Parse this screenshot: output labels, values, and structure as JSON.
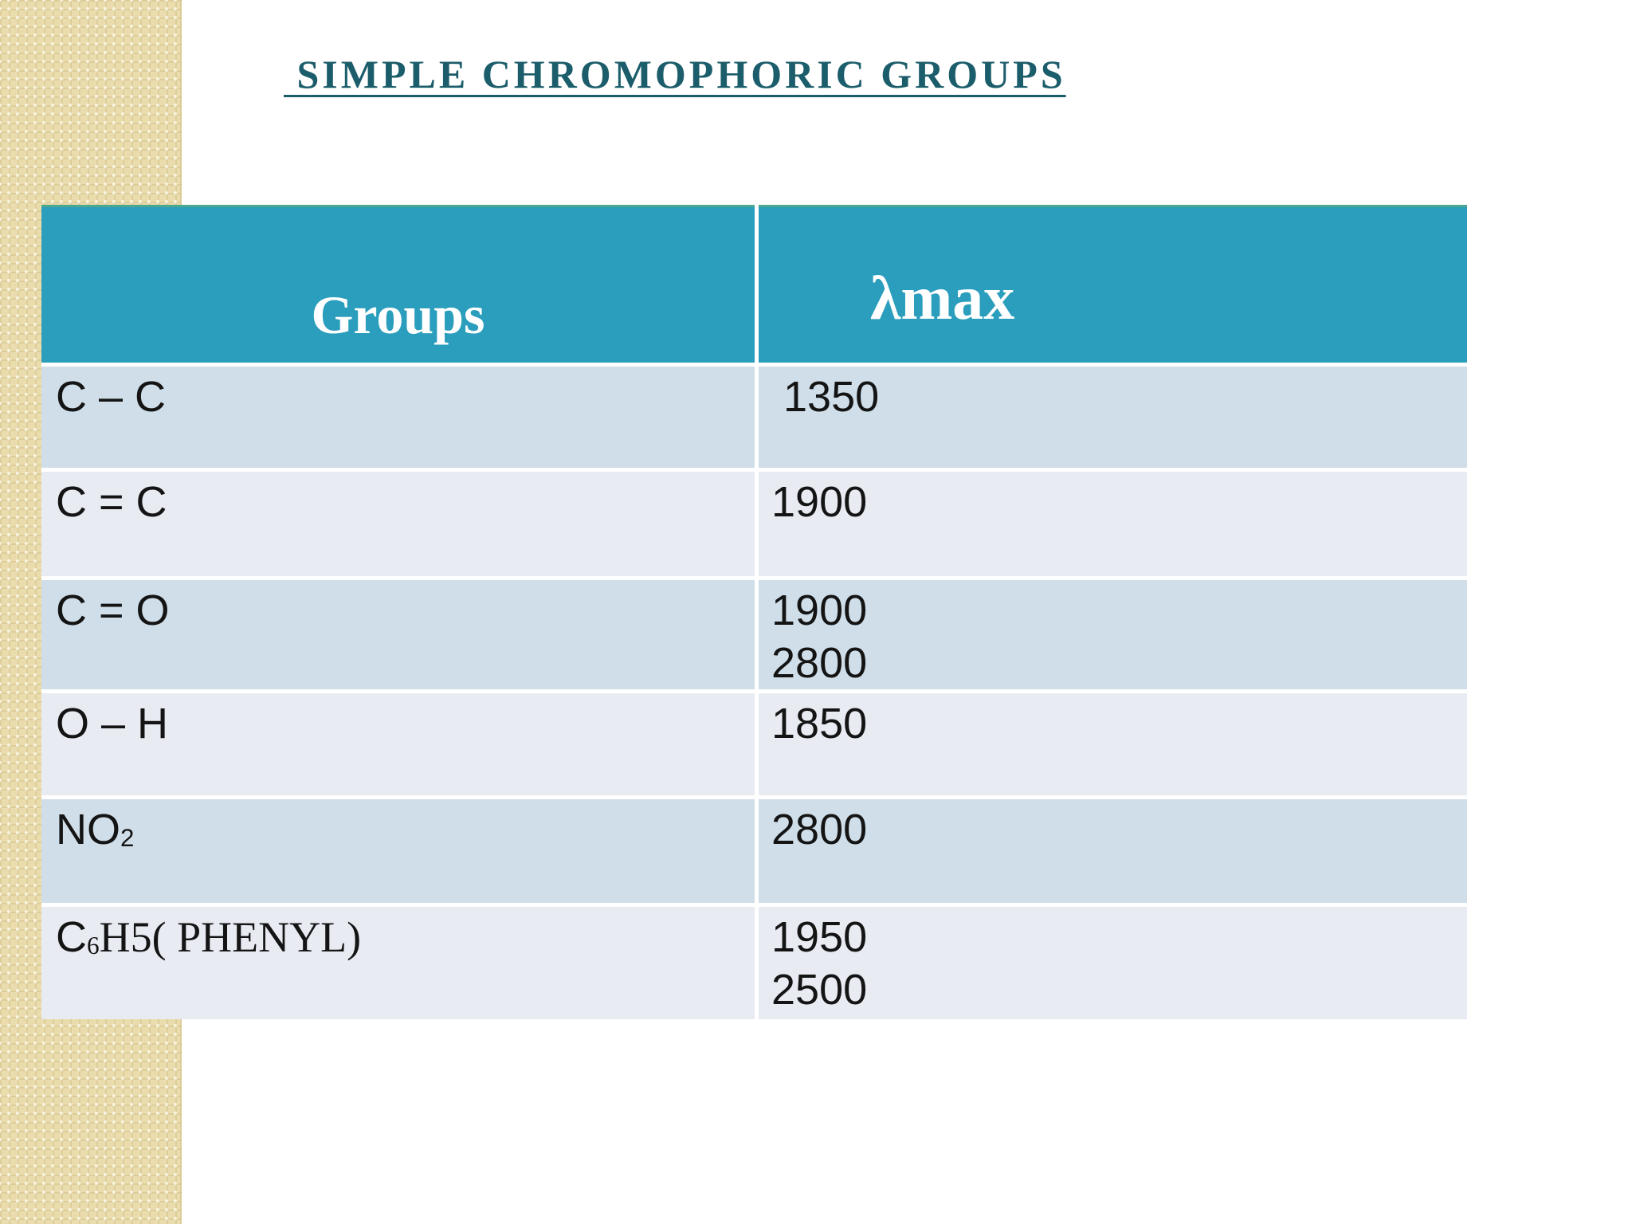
{
  "slide": {
    "title": " SIMPLE CHROMOPHORIC GROUPS"
  },
  "table": {
    "columns": [
      "Groups",
      "λmax"
    ],
    "rows": [
      {
        "group": {
          "pre": "C – C"
        },
        "lambda_max": " 1350"
      },
      {
        "group": {
          "pre": "C = C"
        },
        "lambda_max": "1900"
      },
      {
        "group": {
          "pre": "C = O"
        },
        "lambda_max": "1900\n2800"
      },
      {
        "group": {
          "pre": "O – H"
        },
        "lambda_max": "1850"
      },
      {
        "group": {
          "pre": "NO",
          "sub": "2"
        },
        "lambda_max": "2800"
      },
      {
        "group": {
          "pre": "C",
          "sub": "6",
          "post": "H5( PHENYL)"
        },
        "lambda_max": "1950\n2500"
      }
    ]
  },
  "theme": {
    "page_bg": "#FFFFFF",
    "strip_bg": "#EADCAD",
    "title_color": "#1C5D6B",
    "header_bg": "#2A9EBC",
    "header_top_line": "#4BA78F",
    "row_dark_bg": "#CFDEE9",
    "row_light_bg": "#E8EBF2",
    "cell_text_color": "#141414"
  }
}
